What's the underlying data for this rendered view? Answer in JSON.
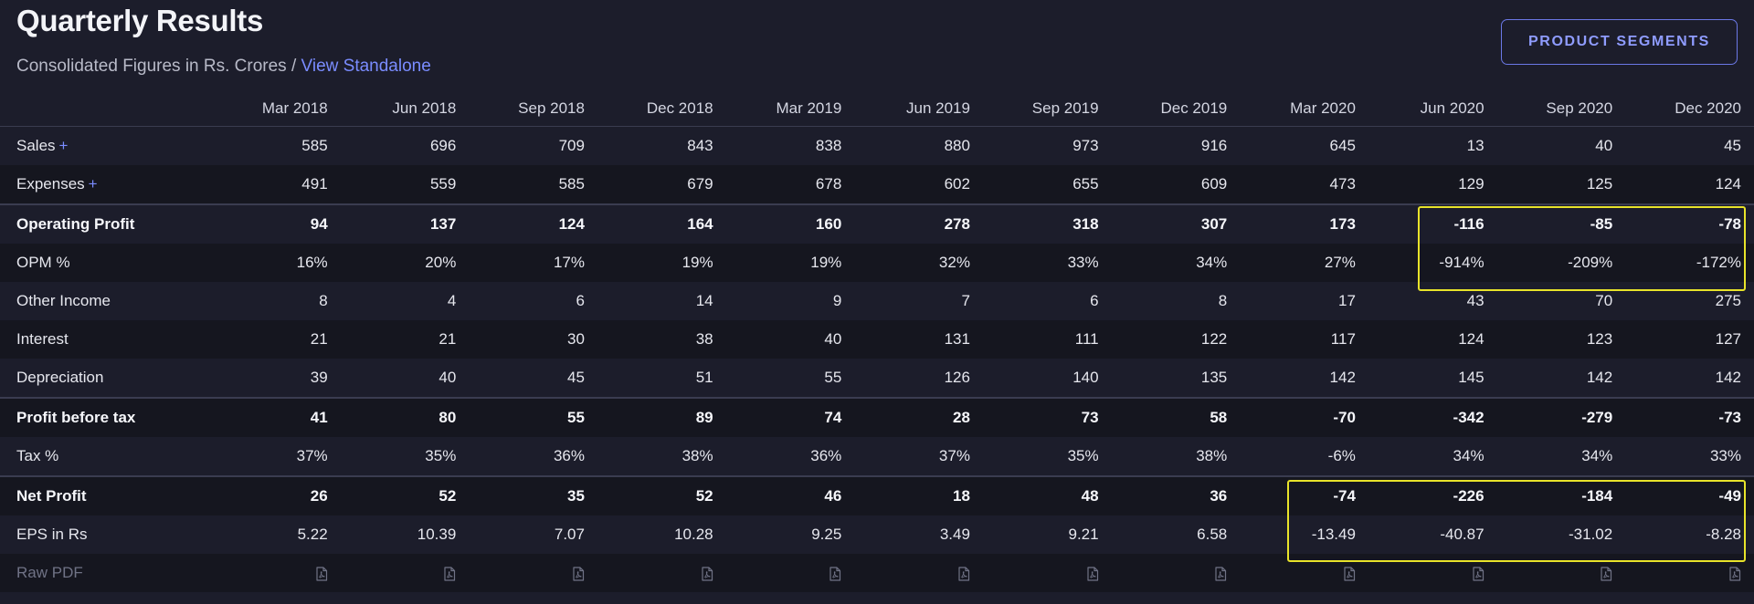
{
  "header": {
    "title": "Quarterly Results",
    "subtitle_text": "Consolidated Figures in Rs. Crores",
    "subtitle_sep": " / ",
    "subtitle_link": "View Standalone",
    "segments_button": "PRODUCT SEGMENTS"
  },
  "table": {
    "columns": [
      "Mar 2018",
      "Jun 2018",
      "Sep 2018",
      "Dec 2018",
      "Mar 2019",
      "Jun 2019",
      "Sep 2019",
      "Dec 2019",
      "Mar 2020",
      "Jun 2020",
      "Sep 2020",
      "Dec 2020"
    ],
    "rows": [
      {
        "label": "Sales",
        "expandable": true,
        "bold": false,
        "sep": false,
        "values": [
          "585",
          "696",
          "709",
          "843",
          "838",
          "880",
          "973",
          "916",
          "645",
          "13",
          "40",
          "45"
        ]
      },
      {
        "label": "Expenses",
        "expandable": true,
        "bold": false,
        "sep": false,
        "values": [
          "491",
          "559",
          "585",
          "679",
          "678",
          "602",
          "655",
          "609",
          "473",
          "129",
          "125",
          "124"
        ]
      },
      {
        "label": "Operating Profit",
        "expandable": false,
        "bold": true,
        "sep": true,
        "values": [
          "94",
          "137",
          "124",
          "164",
          "160",
          "278",
          "318",
          "307",
          "173",
          "-116",
          "-85",
          "-78"
        ]
      },
      {
        "label": "OPM %",
        "expandable": false,
        "bold": false,
        "sep": false,
        "values": [
          "16%",
          "20%",
          "17%",
          "19%",
          "19%",
          "32%",
          "33%",
          "34%",
          "27%",
          "-914%",
          "-209%",
          "-172%"
        ]
      },
      {
        "label": "Other Income",
        "expandable": false,
        "bold": false,
        "sep": false,
        "values": [
          "8",
          "4",
          "6",
          "14",
          "9",
          "7",
          "6",
          "8",
          "17",
          "43",
          "70",
          "275"
        ]
      },
      {
        "label": "Interest",
        "expandable": false,
        "bold": false,
        "sep": false,
        "values": [
          "21",
          "21",
          "30",
          "38",
          "40",
          "131",
          "111",
          "122",
          "117",
          "124",
          "123",
          "127"
        ]
      },
      {
        "label": "Depreciation",
        "expandable": false,
        "bold": false,
        "sep": false,
        "values": [
          "39",
          "40",
          "45",
          "51",
          "55",
          "126",
          "140",
          "135",
          "142",
          "145",
          "142",
          "142"
        ]
      },
      {
        "label": "Profit before tax",
        "expandable": false,
        "bold": true,
        "sep": true,
        "values": [
          "41",
          "80",
          "55",
          "89",
          "74",
          "28",
          "73",
          "58",
          "-70",
          "-342",
          "-279",
          "-73"
        ]
      },
      {
        "label": "Tax %",
        "expandable": false,
        "bold": false,
        "sep": false,
        "values": [
          "37%",
          "35%",
          "36%",
          "38%",
          "36%",
          "37%",
          "35%",
          "38%",
          "-6%",
          "34%",
          "34%",
          "33%"
        ]
      },
      {
        "label": "Net Profit",
        "expandable": false,
        "bold": true,
        "sep": true,
        "values": [
          "26",
          "52",
          "35",
          "52",
          "46",
          "18",
          "48",
          "36",
          "-74",
          "-226",
          "-184",
          "-49"
        ]
      },
      {
        "label": "EPS in Rs",
        "expandable": false,
        "bold": false,
        "sep": false,
        "values": [
          "5.22",
          "10.39",
          "7.07",
          "10.28",
          "9.25",
          "3.49",
          "9.21",
          "6.58",
          "-13.49",
          "-40.87",
          "-31.02",
          "-8.28"
        ]
      }
    ],
    "raw_pdf_label": "Raw PDF",
    "raw_pdf_icon": "pdf-file-icon"
  },
  "colors": {
    "background": "#1c1d2b",
    "accent": "#7a8cff",
    "highlight": "#e8e32a"
  }
}
